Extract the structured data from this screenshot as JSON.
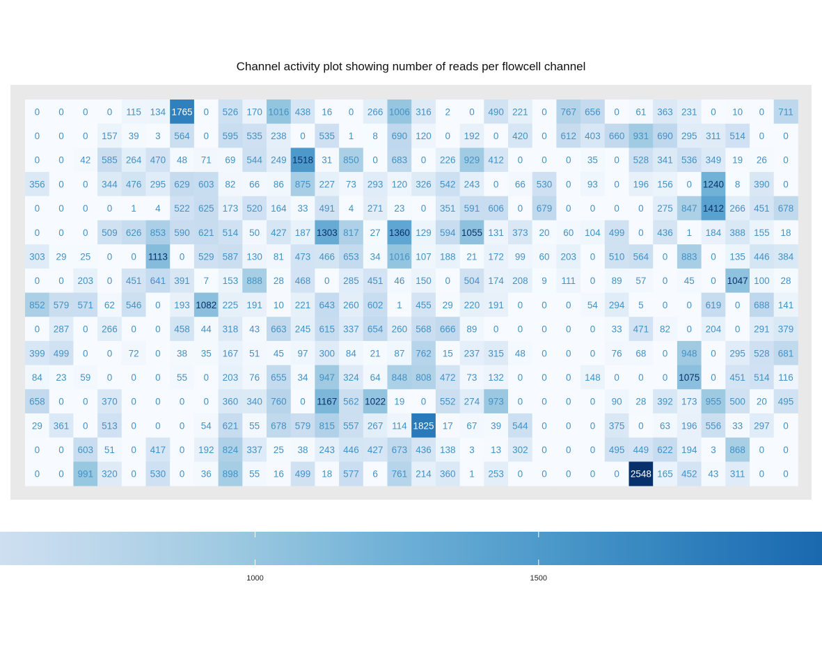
{
  "chart_data": {
    "type": "heatmap",
    "title": "Channel activity plot showing number of reads per flowcell channel",
    "xlabel": "",
    "ylabel": "",
    "columns": 32,
    "rows": 16,
    "values": [
      [
        0,
        0,
        0,
        0,
        115,
        134,
        1765,
        0,
        526,
        170,
        1016,
        438,
        16,
        0,
        266,
        1006,
        316,
        2,
        0,
        490,
        221,
        0,
        767,
        656,
        0,
        61,
        363,
        231,
        0,
        10,
        0,
        711
      ],
      [
        0,
        0,
        0,
        157,
        39,
        3,
        564,
        0,
        595,
        535,
        238,
        0,
        535,
        1,
        8,
        690,
        120,
        0,
        192,
        0,
        420,
        0,
        612,
        403,
        660,
        931,
        690,
        295,
        311,
        514,
        0,
        0
      ],
      [
        0,
        0,
        42,
        585,
        264,
        470,
        48,
        71,
        69,
        544,
        249,
        1518,
        31,
        850,
        0,
        683,
        0,
        226,
        929,
        412,
        0,
        0,
        0,
        35,
        0,
        528,
        341,
        536,
        349,
        19,
        26,
        0
      ],
      [
        356,
        0,
        0,
        344,
        476,
        295,
        629,
        603,
        82,
        66,
        86,
        875,
        227,
        73,
        293,
        120,
        326,
        542,
        243,
        0,
        66,
        530,
        0,
        93,
        0,
        196,
        156,
        0,
        1240,
        8,
        390,
        0
      ],
      [
        0,
        0,
        0,
        0,
        1,
        4,
        522,
        625,
        173,
        520,
        164,
        33,
        491,
        4,
        271,
        23,
        0,
        351,
        591,
        606,
        0,
        679,
        0,
        0,
        0,
        0,
        275,
        847,
        1412,
        266,
        451,
        678
      ],
      [
        0,
        0,
        0,
        509,
        626,
        853,
        590,
        621,
        514,
        50,
        427,
        187,
        1303,
        817,
        27,
        1360,
        129,
        594,
        1055,
        131,
        373,
        20,
        60,
        104,
        499,
        0,
        436,
        1,
        184,
        388,
        155,
        18
      ],
      [
        303,
        29,
        25,
        0,
        0,
        1113,
        0,
        529,
        587,
        130,
        81,
        473,
        466,
        653,
        34,
        1016,
        107,
        188,
        21,
        172,
        99,
        60,
        203,
        0,
        510,
        564,
        0,
        883,
        0,
        135,
        446,
        384
      ],
      [
        0,
        0,
        203,
        0,
        451,
        641,
        391,
        7,
        153,
        888,
        28,
        468,
        0,
        285,
        451,
        46,
        150,
        0,
        504,
        174,
        208,
        9,
        111,
        0,
        89,
        57,
        0,
        45,
        0,
        1047,
        100,
        28
      ],
      [
        852,
        579,
        571,
        62,
        546,
        0,
        193,
        1082,
        225,
        191,
        10,
        221,
        643,
        260,
        602,
        1,
        455,
        29,
        220,
        191,
        0,
        0,
        0,
        54,
        294,
        5,
        0,
        0,
        619,
        0,
        688,
        141
      ],
      [
        0,
        287,
        0,
        266,
        0,
        0,
        458,
        44,
        318,
        43,
        663,
        245,
        615,
        337,
        654,
        260,
        568,
        666,
        89,
        0,
        0,
        0,
        0,
        0,
        33,
        471,
        82,
        0,
        204,
        0,
        291,
        379
      ],
      [
        399,
        499,
        0,
        0,
        72,
        0,
        38,
        35,
        167,
        51,
        45,
        97,
        300,
        84,
        21,
        87,
        762,
        15,
        237,
        315,
        48,
        0,
        0,
        0,
        76,
        68,
        0,
        948,
        0,
        295,
        528,
        681
      ],
      [
        84,
        23,
        59,
        0,
        0,
        0,
        55,
        0,
        203,
        76,
        655,
        34,
        947,
        324,
        64,
        848,
        808,
        472,
        73,
        132,
        0,
        0,
        0,
        148,
        0,
        0,
        0,
        1075,
        0,
        451,
        514,
        116
      ],
      [
        658,
        0,
        0,
        370,
        0,
        0,
        0,
        0,
        360,
        340,
        760,
        0,
        1167,
        562,
        1022,
        19,
        0,
        552,
        274,
        973,
        0,
        0,
        0,
        0,
        90,
        28,
        392,
        173,
        955,
        500,
        20,
        495
      ],
      [
        29,
        361,
        0,
        513,
        0,
        0,
        0,
        54,
        621,
        55,
        678,
        579,
        815,
        557,
        267,
        114,
        1825,
        17,
        67,
        39,
        544,
        0,
        0,
        0,
        375,
        0,
        63,
        196,
        556,
        33,
        297,
        0
      ],
      [
        0,
        0,
        603,
        51,
        0,
        417,
        0,
        192,
        824,
        337,
        25,
        38,
        243,
        446,
        427,
        673,
        436,
        138,
        3,
        13,
        302,
        0,
        0,
        0,
        495,
        449,
        622,
        194,
        3,
        868,
        0,
        0
      ],
      [
        0,
        0,
        991,
        320,
        0,
        530,
        0,
        36,
        898,
        55,
        16,
        499,
        18,
        577,
        6,
        761,
        214,
        360,
        1,
        253,
        0,
        0,
        0,
        0,
        0,
        2548,
        165,
        452,
        43,
        311,
        0,
        0
      ]
    ],
    "color_scale": {
      "min": 0,
      "max": 2548,
      "colors": [
        "#f7fbff",
        "#deebf7",
        "#c6dbef",
        "#9ecae1",
        "#6baed6",
        "#4292c6",
        "#2171b5",
        "#08519c",
        "#08306b"
      ]
    },
    "legend": {
      "placement": "bottom",
      "domain_visible": [
        550,
        2000
      ],
      "ticks": [
        1000,
        1500
      ],
      "tick_labels": [
        "1000",
        "1500"
      ]
    },
    "background_color": "#e9e9e9"
  }
}
